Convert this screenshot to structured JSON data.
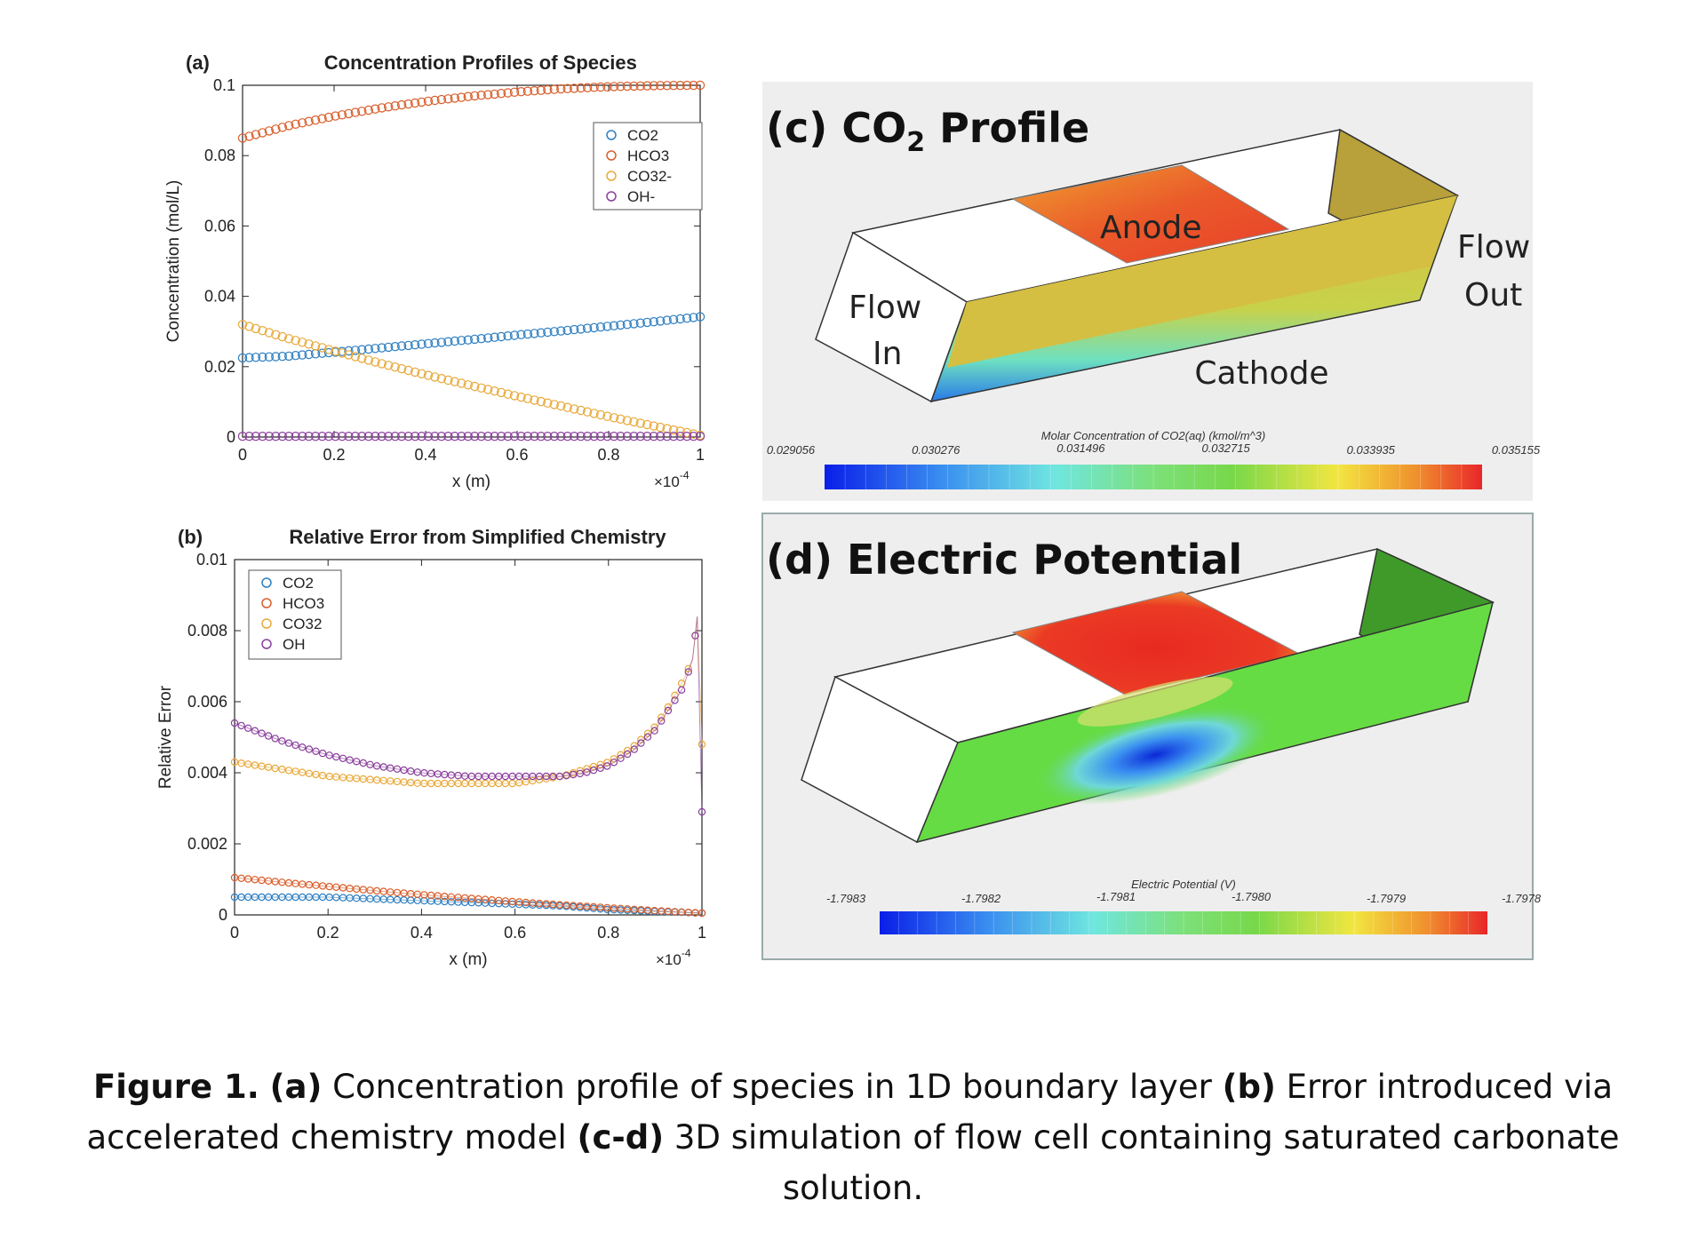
{
  "chart_data": [
    {
      "panel": "(a)",
      "type": "scatter",
      "title": "Concentration Profiles of Species",
      "xlabel": "x (m)",
      "ylabel": "Concentration (mol/L)",
      "x_multiplier": "×10-4",
      "xlim": [
        0,
        1
      ],
      "ylim": [
        0,
        0.1
      ],
      "xticks": [
        "0",
        "0.2",
        "0.4",
        "0.6",
        "0.8",
        "1"
      ],
      "yticks": [
        "0",
        "0.02",
        "0.04",
        "0.06",
        "0.08",
        "0.1"
      ],
      "legend_position": "top-right",
      "series": [
        {
          "name": "CO2",
          "color": "#2e7fc1",
          "x": [
            0,
            0.1,
            0.2,
            0.3,
            0.4,
            0.5,
            0.6,
            0.7,
            0.8,
            0.9,
            1
          ],
          "values": [
            0.0225,
            0.023,
            0.0241,
            0.0253,
            0.0265,
            0.0277,
            0.029,
            0.0302,
            0.0315,
            0.0328,
            0.0342
          ]
        },
        {
          "name": "HCO3",
          "color": "#d95e2b",
          "x": [
            0,
            0.1,
            0.2,
            0.3,
            0.4,
            0.5,
            0.6,
            0.7,
            0.8,
            0.9,
            1
          ],
          "values": [
            0.085,
            0.0885,
            0.0912,
            0.0935,
            0.0954,
            0.0969,
            0.0981,
            0.099,
            0.0996,
            0.0999,
            0.1
          ]
        },
        {
          "name": "CO32-",
          "color": "#e8a93a",
          "x": [
            0,
            0.1,
            0.2,
            0.3,
            0.4,
            0.5,
            0.6,
            0.7,
            0.8,
            0.9,
            1
          ],
          "values": [
            0.032,
            0.028,
            0.0245,
            0.021,
            0.0177,
            0.0146,
            0.0116,
            0.0087,
            0.0058,
            0.0031,
            0.0005
          ]
        },
        {
          "name": "OH-",
          "color": "#8a3f9c",
          "x": [
            0,
            0.1,
            0.2,
            0.3,
            0.4,
            0.5,
            0.6,
            0.7,
            0.8,
            0.9,
            1
          ],
          "values": [
            0.0002,
            0.0002,
            0.0002,
            0.0002,
            0.0002,
            0.0002,
            0.0002,
            0.0002,
            0.0002,
            0.0002,
            0.0002
          ]
        }
      ]
    },
    {
      "panel": "(b)",
      "type": "scatter",
      "title": "Relative Error from Simplified Chemistry",
      "xlabel": "x (m)",
      "ylabel": "Relative Error",
      "x_multiplier": "×10-4",
      "xlim": [
        0,
        1
      ],
      "ylim": [
        0,
        0.01
      ],
      "xticks": [
        "0",
        "0.2",
        "0.4",
        "0.6",
        "0.8",
        "1"
      ],
      "yticks": [
        "0",
        "0.002",
        "0.004",
        "0.006",
        "0.008",
        "0.01"
      ],
      "legend_position": "top-left",
      "series": [
        {
          "name": "CO2",
          "color": "#2e7fc1",
          "x": [
            0,
            0.1,
            0.2,
            0.3,
            0.4,
            0.5,
            0.6,
            0.7,
            0.8,
            0.9,
            1
          ],
          "values": [
            0.0005,
            0.0005,
            0.0005,
            0.00045,
            0.0004,
            0.00035,
            0.0003,
            0.00025,
            0.00015,
            0.0001,
            5e-05
          ]
        },
        {
          "name": "HCO3",
          "color": "#d95e2b",
          "x": [
            0,
            0.1,
            0.2,
            0.3,
            0.4,
            0.5,
            0.6,
            0.7,
            0.8,
            0.9,
            1
          ],
          "values": [
            0.00105,
            0.00092,
            0.0008,
            0.00068,
            0.00057,
            0.00047,
            0.00037,
            0.00028,
            0.0002,
            0.00012,
            5e-05
          ]
        },
        {
          "name": "CO32",
          "color": "#e8a93a",
          "x": [
            0,
            0.1,
            0.2,
            0.3,
            0.4,
            0.5,
            0.6,
            0.65,
            0.7,
            0.75,
            0.8,
            0.85,
            0.9,
            0.93,
            0.96,
            0.98,
            0.99,
            1
          ],
          "values": [
            0.0043,
            0.0041,
            0.0039,
            0.0038,
            0.0037,
            0.0037,
            0.0037,
            0.0038,
            0.0039,
            0.0041,
            0.0043,
            0.0047,
            0.0053,
            0.0059,
            0.0066,
            0.0072,
            0.0084,
            0.0048
          ]
        },
        {
          "name": "OH",
          "color": "#8a3f9c",
          "x": [
            0,
            0.1,
            0.2,
            0.3,
            0.4,
            0.5,
            0.6,
            0.65,
            0.7,
            0.75,
            0.8,
            0.85,
            0.9,
            0.93,
            0.96,
            0.98,
            0.99,
            1
          ],
          "values": [
            0.0054,
            0.0049,
            0.0045,
            0.0042,
            0.004,
            0.0039,
            0.0039,
            0.0039,
            0.0039,
            0.004,
            0.0042,
            0.0046,
            0.0052,
            0.0058,
            0.0064,
            0.0072,
            0.0084,
            0.0029
          ]
        }
      ]
    },
    {
      "panel": "(c)",
      "type": "heatmap",
      "title": "(c) CO",
      "title_sub": "2",
      "title_tail": " Profile",
      "labels": {
        "anode": "Anode",
        "cathode": "Cathode",
        "flow_in_1": "Flow",
        "flow_in_2": "In",
        "flow_out_1": "Flow",
        "flow_out_2": "Out"
      },
      "colorbar_title": "Molar Concentration of CO2(aq) (kmol/m^3)",
      "colorbar_ticks": [
        "0.029056",
        "0.030276",
        "0.031496",
        "0.032715",
        "0.033935",
        "0.035155"
      ]
    },
    {
      "panel": "(d)",
      "type": "heatmap",
      "title": "(d) Electric Potential",
      "colorbar_title": "Electric Potential (V)",
      "colorbar_ticks": [
        "-1.7983",
        "-1.7982",
        "-1.7981",
        "-1.7980",
        "-1.7979",
        "-1.7978"
      ]
    }
  ],
  "caption": {
    "fig": "Figure 1.",
    "a": "(a)",
    "a_text": " Concentration profile of species in 1D boundary layer ",
    "b": "(b)",
    "b_text": " Error introduced via accelerated chemistry model ",
    "cd": "(c-d)",
    "cd_text": " 3D simulation of flow cell containing saturated carbonate solution."
  }
}
